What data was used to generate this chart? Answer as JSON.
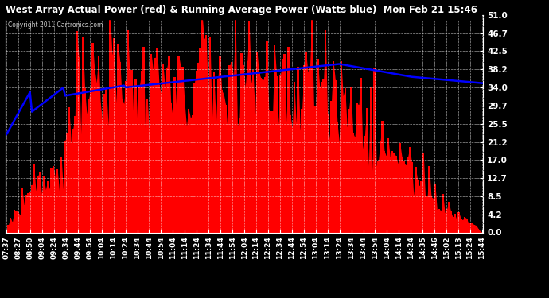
{
  "title": "West Array Actual Power (red) & Running Average Power (Watts blue)  Mon Feb 21 15:46",
  "copyright": "Copyright 2011 Cartronics.com",
  "y_ticks": [
    0.0,
    4.2,
    8.5,
    12.7,
    17.0,
    21.2,
    25.5,
    29.7,
    34.0,
    38.2,
    42.5,
    46.7,
    51.0
  ],
  "ylim": [
    0.0,
    51.0
  ],
  "x_labels": [
    "07:37",
    "08:27",
    "08:50",
    "09:04",
    "09:24",
    "09:34",
    "09:44",
    "09:54",
    "10:04",
    "10:14",
    "10:24",
    "10:34",
    "10:44",
    "10:54",
    "11:04",
    "11:14",
    "11:24",
    "11:34",
    "11:44",
    "11:54",
    "12:04",
    "12:14",
    "12:24",
    "12:34",
    "12:44",
    "12:54",
    "13:04",
    "13:14",
    "13:24",
    "13:34",
    "13:44",
    "13:54",
    "14:04",
    "14:14",
    "14:24",
    "14:35",
    "14:46",
    "15:02",
    "15:13",
    "15:24",
    "15:44"
  ],
  "bar_color": "#ff0000",
  "line_color": "#0000ff",
  "bg_color": "#000000",
  "plot_bg_color": "#000000",
  "grid_color": "#ffffff",
  "title_color": "#ffffff",
  "tick_color": "#ffffff"
}
